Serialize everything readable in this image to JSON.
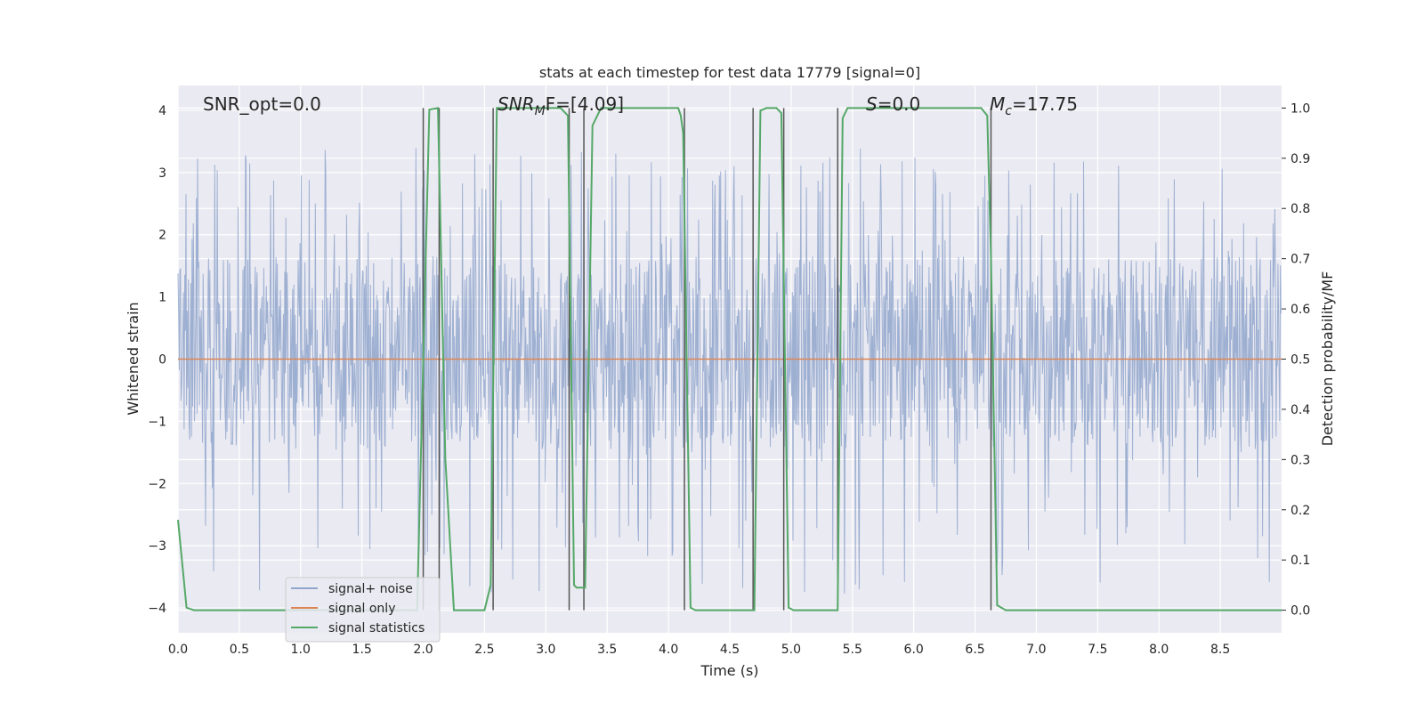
{
  "chart_data": {
    "type": "line",
    "title": "stats at each timestep for test data 17779 [signal=0]",
    "xlabel": "Time (s)",
    "ylabel": "Whitened strain",
    "y2label": "Detection probability/MF",
    "xlim": [
      0,
      9.0
    ],
    "ylim": [
      -4.4,
      4.4
    ],
    "y2lim": [
      -0.045,
      1.045
    ],
    "x_ticks": [
      0.0,
      0.5,
      1.0,
      1.5,
      2.0,
      2.5,
      3.0,
      3.5,
      4.0,
      4.5,
      5.0,
      5.5,
      6.0,
      6.5,
      7.0,
      7.5,
      8.0,
      8.5
    ],
    "x_tick_labels": [
      "0.0",
      "0.5",
      "1.0",
      "1.5",
      "2.0",
      "2.5",
      "3.0",
      "3.5",
      "4.0",
      "4.5",
      "5.0",
      "5.5",
      "6.0",
      "6.5",
      "7.0",
      "7.5",
      "8.0",
      "8.5"
    ],
    "y_ticks": [
      -4,
      -3,
      -2,
      -1,
      0,
      1,
      2,
      3,
      4
    ],
    "y_tick_labels": [
      "−4",
      "−3",
      "−2",
      "−1",
      "0",
      "1",
      "2",
      "3",
      "4"
    ],
    "y2_ticks": [
      0.0,
      0.1,
      0.2,
      0.3,
      0.4,
      0.5,
      0.6,
      0.7,
      0.8,
      0.9,
      1.0
    ],
    "y2_tick_labels": [
      "0.0",
      "0.1",
      "0.2",
      "0.3",
      "0.4",
      "0.5",
      "0.6",
      "0.7",
      "0.8",
      "0.9",
      "1.0"
    ],
    "grid": true,
    "legend_position": "bottom-left",
    "annotations": {
      "snr_opt": "SNR_opt=0.0",
      "snr_mf_base": "SNR",
      "snr_mf_sub": "M",
      "snr_mf_rest": "F=[4.09]",
      "s_label": "S",
      "s_value": "=0.0",
      "mc_base": "M",
      "mc_sub": "c",
      "mc_value": "=17.75"
    },
    "series": [
      {
        "name": "signal+ noise",
        "color": "#91a6cc",
        "envelope": {
          "x_step": 0.005,
          "typical_max": 1.65,
          "typical_min": -1.45,
          "peak_max": 3.4,
          "peak_min": -3.8
        }
      },
      {
        "name": "signal only",
        "color": "#dd8452",
        "x": [
          0.0,
          9.0
        ],
        "y": [
          0.0,
          0.0
        ]
      },
      {
        "name": "signal statistics",
        "color": "#55a868",
        "axis": "right",
        "x": [
          0.0,
          0.07,
          0.13,
          1.95,
          2.02,
          2.05,
          2.12,
          2.18,
          2.25,
          2.5,
          2.55,
          2.6,
          2.62,
          3.12,
          3.18,
          3.23,
          3.25,
          3.32,
          3.38,
          3.45,
          4.08,
          4.1,
          4.12,
          4.18,
          4.22,
          4.7,
          4.75,
          4.8,
          4.88,
          4.92,
          4.98,
          5.02,
          5.38,
          5.42,
          5.46,
          5.5,
          6.55,
          6.6,
          6.63,
          6.68,
          6.75,
          9.0
        ],
        "y": [
          0.18,
          0.005,
          0.0,
          0.0,
          0.7,
          0.997,
          1.0,
          0.3,
          0.0,
          0.0,
          0.05,
          1.0,
          1.0,
          1.0,
          0.985,
          0.05,
          0.045,
          0.045,
          0.965,
          1.0,
          1.0,
          0.985,
          0.95,
          0.005,
          0.0,
          0.0,
          0.995,
          1.0,
          1.0,
          0.99,
          0.005,
          0.0,
          0.0,
          0.98,
          1.0,
          1.0,
          1.0,
          0.985,
          0.7,
          0.01,
          0.0,
          0.0
        ]
      }
    ],
    "vertical_lines": [
      2.0,
      2.13,
      2.57,
      3.19,
      3.31,
      4.13,
      4.69,
      4.94,
      5.38,
      6.63
    ]
  }
}
